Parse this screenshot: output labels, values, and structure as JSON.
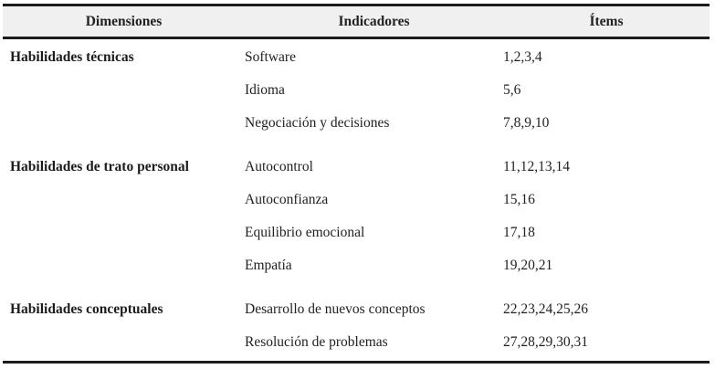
{
  "table": {
    "headers": [
      {
        "label": "Dimensiones"
      },
      {
        "label": "Indicadores"
      },
      {
        "label": "Ítems"
      }
    ],
    "sections": [
      {
        "dimension": "Habilidades técnicas",
        "rows": [
          {
            "indicator": "Software",
            "items": "1,2,3,4"
          },
          {
            "indicator": "Idioma",
            "items": "5,6"
          },
          {
            "indicator": "Negociación y decisiones",
            "items": "7,8,9,10"
          }
        ]
      },
      {
        "dimension": "Habilidades de trato personal",
        "rows": [
          {
            "indicator": "Autocontrol",
            "items": "11,12,13,14"
          },
          {
            "indicator": "Autoconfianza",
            "items": "15,16"
          },
          {
            "indicator": "Equilibrio emocional",
            "items": "17,18"
          },
          {
            "indicator": "Empatía",
            "items": "19,20,21"
          }
        ]
      },
      {
        "dimension": "Habilidades conceptuales",
        "rows": [
          {
            "indicator": "Desarrollo de nuevos conceptos",
            "items": "22,23,24,25,26"
          },
          {
            "indicator": "Resolución de problemas",
            "items": "27,28,29,30,31"
          }
        ]
      }
    ],
    "colors": {
      "header_bg": "#f0f0f1",
      "rule": "#1c1c1c",
      "text": "#1f1f1f"
    }
  }
}
